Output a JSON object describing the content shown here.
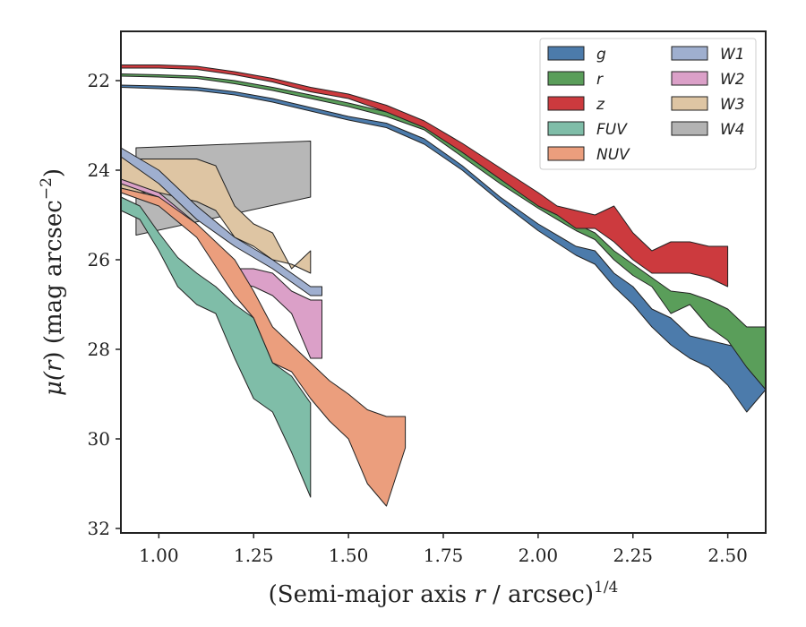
{
  "chart_data": {
    "type": "area",
    "xlabel": "(Semi-major axis r / arcsec)^{1/4}",
    "xlabel_parts": {
      "pre": "(Semi-major axis ",
      "var": "r",
      "mid": " / arcsec)",
      "sup": "1/4"
    },
    "ylabel": "μ(r) (mag arcsec^-2)",
    "ylabel_parts": {
      "mu": "μ(",
      "var": "r",
      "mid": ") (mag arcsec",
      "sup": "−2",
      "end": ")"
    },
    "xlim": [
      0.9,
      2.6
    ],
    "ylim": [
      32.1,
      20.9
    ],
    "y_inverted": true,
    "xticks": [
      "1.00",
      "1.25",
      "1.50",
      "1.75",
      "2.00",
      "2.25",
      "2.50"
    ],
    "xtick_values": [
      1.0,
      1.25,
      1.5,
      1.75,
      2.0,
      2.25,
      2.5
    ],
    "yticks": [
      "22",
      "24",
      "26",
      "28",
      "30",
      "32"
    ],
    "ytick_values": [
      22,
      24,
      26,
      28,
      30,
      32
    ],
    "grid": false,
    "legend_position": "top-right",
    "legend_columns": 2,
    "series": [
      {
        "name": "g",
        "color": "#4c7bab",
        "x": [
          0.9,
          1.0,
          1.1,
          1.2,
          1.3,
          1.4,
          1.5,
          1.6,
          1.7,
          1.8,
          1.9,
          2.0,
          2.1,
          2.15,
          2.2,
          2.25,
          2.3,
          2.35,
          2.4,
          2.45,
          2.5,
          2.55,
          2.6
        ],
        "y_upper": [
          22.1,
          22.12,
          22.15,
          22.25,
          22.4,
          22.6,
          22.8,
          22.95,
          23.3,
          23.9,
          24.6,
          25.2,
          25.7,
          25.8,
          26.3,
          26.6,
          27.1,
          27.3,
          27.7,
          27.8,
          27.9,
          28.0,
          27.8
        ],
        "y_lower": [
          22.15,
          22.18,
          22.22,
          22.32,
          22.48,
          22.68,
          22.88,
          23.05,
          23.42,
          24.0,
          24.7,
          25.35,
          25.9,
          26.1,
          26.6,
          27.0,
          27.5,
          27.9,
          28.2,
          28.4,
          28.8,
          29.4,
          28.9
        ]
      },
      {
        "name": "r",
        "color": "#5a9e5a",
        "x": [
          0.9,
          1.0,
          1.1,
          1.2,
          1.3,
          1.4,
          1.5,
          1.6,
          1.7,
          1.8,
          1.9,
          2.0,
          2.1,
          2.15,
          2.2,
          2.25,
          2.3,
          2.35,
          2.4,
          2.45,
          2.5,
          2.55,
          2.6
        ],
        "y_upper": [
          21.85,
          21.87,
          21.9,
          22.0,
          22.15,
          22.32,
          22.5,
          22.7,
          23.0,
          23.6,
          24.2,
          24.75,
          25.2,
          25.4,
          25.8,
          26.1,
          26.4,
          26.7,
          26.75,
          26.9,
          27.1,
          27.5,
          27.5
        ],
        "y_lower": [
          21.9,
          21.92,
          21.95,
          22.07,
          22.22,
          22.4,
          22.58,
          22.8,
          23.1,
          23.7,
          24.3,
          24.85,
          25.35,
          25.55,
          26.0,
          26.35,
          26.6,
          27.2,
          27.0,
          27.5,
          27.8,
          28.4,
          28.9
        ]
      },
      {
        "name": "z",
        "color": "#cc3a3e",
        "x": [
          0.9,
          1.0,
          1.1,
          1.2,
          1.3,
          1.4,
          1.5,
          1.6,
          1.7,
          1.8,
          1.9,
          2.0,
          2.05,
          2.1,
          2.15,
          2.2,
          2.25,
          2.3,
          2.35,
          2.4,
          2.45,
          2.5
        ],
        "y_upper": [
          21.65,
          21.65,
          21.68,
          21.8,
          21.95,
          22.15,
          22.3,
          22.55,
          22.9,
          23.4,
          23.95,
          24.5,
          24.8,
          24.9,
          25.0,
          24.8,
          25.4,
          25.8,
          25.6,
          25.6,
          25.7,
          25.7
        ],
        "y_lower": [
          21.72,
          21.72,
          21.75,
          21.87,
          22.03,
          22.25,
          22.4,
          22.7,
          23.05,
          23.6,
          24.2,
          24.8,
          25.0,
          25.3,
          25.3,
          25.6,
          26.0,
          26.3,
          26.3,
          26.3,
          26.4,
          26.6
        ]
      },
      {
        "name": "FUV",
        "color": "#7fbda8",
        "x": [
          0.9,
          0.95,
          1.0,
          1.05,
          1.1,
          1.15,
          1.2,
          1.25,
          1.3,
          1.35,
          1.4
        ],
        "y_upper": [
          24.6,
          24.8,
          25.4,
          25.95,
          26.3,
          26.6,
          27.0,
          27.3,
          28.3,
          28.6,
          29.2
        ],
        "y_lower": [
          24.9,
          25.1,
          25.8,
          26.6,
          27.0,
          27.2,
          28.2,
          29.1,
          29.4,
          30.3,
          31.3
        ]
      },
      {
        "name": "NUV",
        "color": "#eb9e7d",
        "x": [
          0.9,
          1.0,
          1.1,
          1.2,
          1.25,
          1.3,
          1.35,
          1.4,
          1.45,
          1.5,
          1.55,
          1.6,
          1.65
        ],
        "y_upper": [
          24.4,
          24.6,
          25.2,
          26.0,
          26.7,
          27.5,
          27.9,
          28.3,
          28.7,
          29.0,
          29.35,
          29.5,
          29.5
        ],
        "y_lower": [
          24.5,
          24.8,
          25.5,
          26.8,
          27.3,
          28.3,
          28.5,
          29.1,
          29.6,
          30.0,
          31.0,
          31.5,
          30.2
        ]
      },
      {
        "name": "W1",
        "color": "#9fafcf",
        "x": [
          0.9,
          1.0,
          1.1,
          1.2,
          1.3,
          1.35,
          1.4,
          1.43
        ],
        "y_upper": [
          23.5,
          24.0,
          24.8,
          25.5,
          26.0,
          26.3,
          26.6,
          26.6
        ],
        "y_lower": [
          23.7,
          24.3,
          25.1,
          25.7,
          26.2,
          26.5,
          26.8,
          26.8
        ]
      },
      {
        "name": "W2",
        "color": "#dba0c8",
        "x": [
          0.9,
          1.0,
          1.1,
          1.15,
          1.2,
          1.25,
          1.3,
          1.35,
          1.4,
          1.43
        ],
        "y_upper": [
          24.2,
          24.5,
          25.2,
          25.8,
          26.2,
          26.2,
          26.3,
          26.7,
          26.9,
          26.9
        ],
        "y_lower": [
          24.3,
          24.6,
          25.4,
          26.1,
          26.5,
          26.6,
          26.8,
          27.2,
          28.2,
          28.2
        ]
      },
      {
        "name": "W3",
        "color": "#dec5a3",
        "x": [
          0.9,
          0.95,
          1.0,
          1.1,
          1.15,
          1.2,
          1.25,
          1.3,
          1.35,
          1.4
        ],
        "y_upper": [
          23.7,
          23.75,
          23.75,
          23.75,
          23.9,
          24.8,
          25.2,
          25.4,
          26.2,
          25.8
        ],
        "y_lower": [
          24.4,
          24.5,
          24.5,
          24.7,
          24.9,
          25.5,
          25.7,
          26.0,
          26.1,
          26.3
        ]
      },
      {
        "name": "W4",
        "color": "#b3b3b3",
        "x": [
          0.94,
          1.4
        ],
        "y_upper": [
          23.5,
          23.35
        ],
        "y_lower": [
          25.45,
          24.6
        ]
      }
    ]
  }
}
